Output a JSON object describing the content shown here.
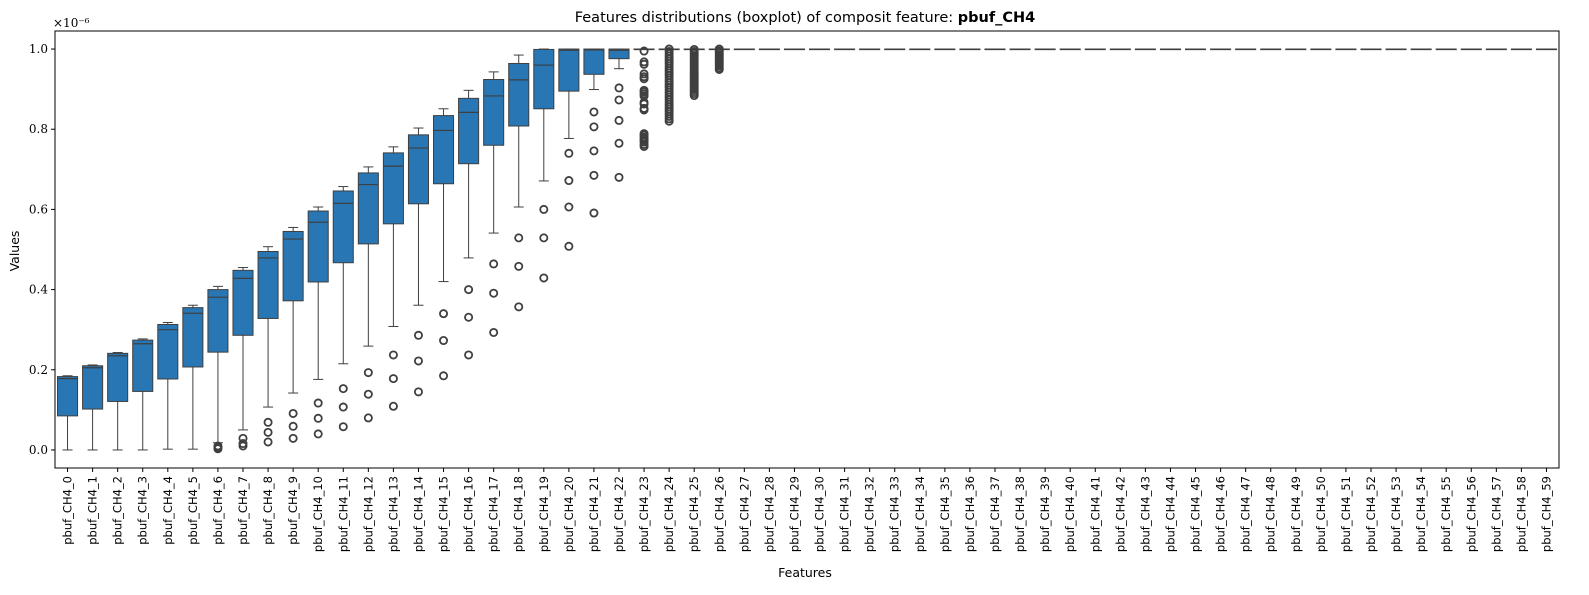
{
  "chart_data": {
    "type": "boxplot",
    "title_prefix": "Features distributions (boxplot) of composit feature: ",
    "title_bold": "pbuf_CH4",
    "xlabel": "Features",
    "ylabel": "Values",
    "y_multiplier_label": "×10⁻⁶",
    "ylim": [
      -0.045,
      1.045
    ],
    "yticks": [
      0.0,
      0.2,
      0.4,
      0.6,
      0.8,
      1.0
    ],
    "ytick_labels": [
      "0.0",
      "0.2",
      "0.4",
      "0.6",
      "0.8",
      "1.0"
    ],
    "box_color": "#2876b4",
    "line_color": "#3f3f3f",
    "categories": [
      "pbuf_CH4_0",
      "pbuf_CH4_1",
      "pbuf_CH4_2",
      "pbuf_CH4_3",
      "pbuf_CH4_4",
      "pbuf_CH4_5",
      "pbuf_CH4_6",
      "pbuf_CH4_7",
      "pbuf_CH4_8",
      "pbuf_CH4_9",
      "pbuf_CH4_10",
      "pbuf_CH4_11",
      "pbuf_CH4_12",
      "pbuf_CH4_13",
      "pbuf_CH4_14",
      "pbuf_CH4_15",
      "pbuf_CH4_16",
      "pbuf_CH4_17",
      "pbuf_CH4_18",
      "pbuf_CH4_19",
      "pbuf_CH4_20",
      "pbuf_CH4_21",
      "pbuf_CH4_22",
      "pbuf_CH4_23",
      "pbuf_CH4_24",
      "pbuf_CH4_25",
      "pbuf_CH4_26",
      "pbuf_CH4_27",
      "pbuf_CH4_28",
      "pbuf_CH4_29",
      "pbuf_CH4_30",
      "pbuf_CH4_31",
      "pbuf_CH4_32",
      "pbuf_CH4_33",
      "pbuf_CH4_34",
      "pbuf_CH4_35",
      "pbuf_CH4_36",
      "pbuf_CH4_37",
      "pbuf_CH4_38",
      "pbuf_CH4_39",
      "pbuf_CH4_40",
      "pbuf_CH4_41",
      "pbuf_CH4_42",
      "pbuf_CH4_43",
      "pbuf_CH4_44",
      "pbuf_CH4_45",
      "pbuf_CH4_46",
      "pbuf_CH4_47",
      "pbuf_CH4_48",
      "pbuf_CH4_49",
      "pbuf_CH4_50",
      "pbuf_CH4_51",
      "pbuf_CH4_52",
      "pbuf_CH4_53",
      "pbuf_CH4_54",
      "pbuf_CH4_55",
      "pbuf_CH4_56",
      "pbuf_CH4_57",
      "pbuf_CH4_58",
      "pbuf_CH4_59"
    ],
    "boxes": [
      {
        "whislo": 0.0,
        "q1": 0.085,
        "med": 0.178,
        "q3": 0.183,
        "whishi": 0.185,
        "fliers": []
      },
      {
        "whislo": 0.0,
        "q1": 0.102,
        "med": 0.205,
        "q3": 0.21,
        "whishi": 0.212,
        "fliers": []
      },
      {
        "whislo": 0.0,
        "q1": 0.121,
        "med": 0.235,
        "q3": 0.241,
        "whishi": 0.243,
        "fliers": []
      },
      {
        "whislo": 0.0,
        "q1": 0.146,
        "med": 0.265,
        "q3": 0.274,
        "whishi": 0.277,
        "fliers": []
      },
      {
        "whislo": 0.002,
        "q1": 0.177,
        "med": 0.3,
        "q3": 0.313,
        "whishi": 0.318,
        "fliers": []
      },
      {
        "whislo": 0.002,
        "q1": 0.207,
        "med": 0.341,
        "q3": 0.355,
        "whishi": 0.361,
        "fliers": []
      },
      {
        "whislo": 0.018,
        "q1": 0.244,
        "med": 0.381,
        "q3": 0.4,
        "whishi": 0.408,
        "fliers": [
          0.003,
          0.007,
          0.01
        ]
      },
      {
        "whislo": 0.05,
        "q1": 0.286,
        "med": 0.428,
        "q3": 0.448,
        "whishi": 0.455,
        "fliers": [
          0.01,
          0.016,
          0.029
        ]
      },
      {
        "whislo": 0.107,
        "q1": 0.328,
        "med": 0.479,
        "q3": 0.495,
        "whishi": 0.507,
        "fliers": [
          0.02,
          0.044,
          0.069
        ]
      },
      {
        "whislo": 0.142,
        "q1": 0.372,
        "med": 0.526,
        "q3": 0.545,
        "whishi": 0.555,
        "fliers": [
          0.029,
          0.059,
          0.091
        ]
      },
      {
        "whislo": 0.176,
        "q1": 0.419,
        "med": 0.568,
        "q3": 0.596,
        "whishi": 0.606,
        "fliers": [
          0.04,
          0.079,
          0.117
        ]
      },
      {
        "whislo": 0.215,
        "q1": 0.467,
        "med": 0.615,
        "q3": 0.646,
        "whishi": 0.657,
        "fliers": [
          0.058,
          0.107,
          0.153
        ]
      },
      {
        "whislo": 0.259,
        "q1": 0.514,
        "med": 0.662,
        "q3": 0.691,
        "whishi": 0.706,
        "fliers": [
          0.08,
          0.139,
          0.193
        ]
      },
      {
        "whislo": 0.308,
        "q1": 0.564,
        "med": 0.708,
        "q3": 0.741,
        "whishi": 0.756,
        "fliers": [
          0.109,
          0.178,
          0.237
        ]
      },
      {
        "whislo": 0.361,
        "q1": 0.614,
        "med": 0.753,
        "q3": 0.786,
        "whishi": 0.803,
        "fliers": [
          0.145,
          0.222,
          0.286
        ]
      },
      {
        "whislo": 0.42,
        "q1": 0.664,
        "med": 0.797,
        "q3": 0.834,
        "whishi": 0.851,
        "fliers": [
          0.185,
          0.273,
          0.34
        ]
      },
      {
        "whislo": 0.479,
        "q1": 0.714,
        "med": 0.842,
        "q3": 0.877,
        "whishi": 0.897,
        "fliers": [
          0.237,
          0.331,
          0.4
        ]
      },
      {
        "whislo": 0.541,
        "q1": 0.76,
        "med": 0.883,
        "q3": 0.924,
        "whishi": 0.943,
        "fliers": [
          0.293,
          0.391,
          0.464
        ]
      },
      {
        "whislo": 0.606,
        "q1": 0.808,
        "med": 0.923,
        "q3": 0.964,
        "whishi": 0.985,
        "fliers": [
          0.357,
          0.458,
          0.529
        ]
      },
      {
        "whislo": 0.671,
        "q1": 0.851,
        "med": 0.96,
        "q3": 0.999,
        "whishi": 1.0,
        "fliers": [
          0.429,
          0.529,
          0.6
        ]
      },
      {
        "whislo": 0.777,
        "q1": 0.895,
        "med": 0.997,
        "q3": 1.0,
        "whishi": 1.0,
        "fliers": [
          0.508,
          0.606,
          0.672,
          0.74
        ]
      },
      {
        "whislo": 0.899,
        "q1": 0.937,
        "med": 0.998,
        "q3": 1.0,
        "whishi": 1.0,
        "fliers": [
          0.591,
          0.685,
          0.746,
          0.806,
          0.843
        ]
      },
      {
        "whislo": 0.951,
        "q1": 0.976,
        "med": 0.997,
        "q3": 1.0,
        "whishi": 1.0,
        "fliers": [
          0.68,
          0.765,
          0.822,
          0.873,
          0.903
        ]
      },
      {
        "whislo": 1.0,
        "q1": 1.0,
        "med": 1.0,
        "q3": 1.0,
        "whishi": 1.0,
        "fliers": [
          0.757,
          0.762,
          0.768,
          0.772,
          0.776,
          0.78,
          0.785,
          0.789,
          0.848,
          0.852,
          0.863,
          0.867,
          0.883,
          0.888,
          0.893,
          0.897,
          0.926,
          0.931,
          0.938,
          0.962,
          0.968,
          0.995
        ]
      },
      {
        "whislo": 1.0,
        "q1": 1.0,
        "med": 1.0,
        "q3": 1.0,
        "whishi": 1.0,
        "fliers": [
          0.82,
          0.826,
          0.832,
          0.838,
          0.844,
          0.85,
          0.856,
          0.862,
          0.868,
          0.874,
          0.88,
          0.886,
          0.892,
          0.898,
          0.904,
          0.91,
          0.916,
          0.922,
          0.928,
          0.934,
          0.94,
          0.946,
          0.952,
          0.958,
          0.964,
          0.97,
          0.976,
          0.982,
          0.988,
          0.994,
          1.0
        ]
      },
      {
        "whislo": 1.0,
        "q1": 1.0,
        "med": 1.0,
        "q3": 1.0,
        "whishi": 1.0,
        "fliers": [
          0.884,
          0.889,
          0.894,
          0.899,
          0.904,
          0.909,
          0.914,
          0.919,
          0.924,
          0.929,
          0.934,
          0.939,
          0.944,
          0.949,
          0.954,
          0.959,
          0.964,
          0.969,
          0.974,
          0.979,
          0.984,
          0.989,
          0.994,
          0.999
        ]
      },
      {
        "whislo": 1.0,
        "q1": 1.0,
        "med": 1.0,
        "q3": 1.0,
        "whishi": 1.0,
        "fliers": [
          0.949,
          0.953,
          0.958,
          0.962,
          0.966,
          0.97,
          0.975,
          0.98,
          0.985,
          0.99,
          0.995,
          1.0
        ]
      },
      {
        "whislo": 1.0,
        "q1": 1.0,
        "med": 1.0,
        "q3": 1.0,
        "whishi": 1.0,
        "fliers": []
      },
      {
        "whislo": 1.0,
        "q1": 1.0,
        "med": 1.0,
        "q3": 1.0,
        "whishi": 1.0,
        "fliers": []
      },
      {
        "whislo": 1.0,
        "q1": 1.0,
        "med": 1.0,
        "q3": 1.0,
        "whishi": 1.0,
        "fliers": []
      },
      {
        "whislo": 1.0,
        "q1": 1.0,
        "med": 1.0,
        "q3": 1.0,
        "whishi": 1.0,
        "fliers": []
      },
      {
        "whislo": 1.0,
        "q1": 1.0,
        "med": 1.0,
        "q3": 1.0,
        "whishi": 1.0,
        "fliers": []
      },
      {
        "whislo": 1.0,
        "q1": 1.0,
        "med": 1.0,
        "q3": 1.0,
        "whishi": 1.0,
        "fliers": []
      },
      {
        "whislo": 1.0,
        "q1": 1.0,
        "med": 1.0,
        "q3": 1.0,
        "whishi": 1.0,
        "fliers": []
      },
      {
        "whislo": 1.0,
        "q1": 1.0,
        "med": 1.0,
        "q3": 1.0,
        "whishi": 1.0,
        "fliers": []
      },
      {
        "whislo": 1.0,
        "q1": 1.0,
        "med": 1.0,
        "q3": 1.0,
        "whishi": 1.0,
        "fliers": []
      },
      {
        "whislo": 1.0,
        "q1": 1.0,
        "med": 1.0,
        "q3": 1.0,
        "whishi": 1.0,
        "fliers": []
      },
      {
        "whislo": 1.0,
        "q1": 1.0,
        "med": 1.0,
        "q3": 1.0,
        "whishi": 1.0,
        "fliers": []
      },
      {
        "whislo": 1.0,
        "q1": 1.0,
        "med": 1.0,
        "q3": 1.0,
        "whishi": 1.0,
        "fliers": []
      },
      {
        "whislo": 1.0,
        "q1": 1.0,
        "med": 1.0,
        "q3": 1.0,
        "whishi": 1.0,
        "fliers": []
      },
      {
        "whislo": 1.0,
        "q1": 1.0,
        "med": 1.0,
        "q3": 1.0,
        "whishi": 1.0,
        "fliers": []
      },
      {
        "whislo": 1.0,
        "q1": 1.0,
        "med": 1.0,
        "q3": 1.0,
        "whishi": 1.0,
        "fliers": []
      },
      {
        "whislo": 1.0,
        "q1": 1.0,
        "med": 1.0,
        "q3": 1.0,
        "whishi": 1.0,
        "fliers": []
      },
      {
        "whislo": 1.0,
        "q1": 1.0,
        "med": 1.0,
        "q3": 1.0,
        "whishi": 1.0,
        "fliers": []
      },
      {
        "whislo": 1.0,
        "q1": 1.0,
        "med": 1.0,
        "q3": 1.0,
        "whishi": 1.0,
        "fliers": []
      },
      {
        "whislo": 1.0,
        "q1": 1.0,
        "med": 1.0,
        "q3": 1.0,
        "whishi": 1.0,
        "fliers": []
      },
      {
        "whislo": 1.0,
        "q1": 1.0,
        "med": 1.0,
        "q3": 1.0,
        "whishi": 1.0,
        "fliers": []
      },
      {
        "whislo": 1.0,
        "q1": 1.0,
        "med": 1.0,
        "q3": 1.0,
        "whishi": 1.0,
        "fliers": []
      },
      {
        "whislo": 1.0,
        "q1": 1.0,
        "med": 1.0,
        "q3": 1.0,
        "whishi": 1.0,
        "fliers": []
      },
      {
        "whislo": 1.0,
        "q1": 1.0,
        "med": 1.0,
        "q3": 1.0,
        "whishi": 1.0,
        "fliers": []
      },
      {
        "whislo": 1.0,
        "q1": 1.0,
        "med": 1.0,
        "q3": 1.0,
        "whishi": 1.0,
        "fliers": []
      },
      {
        "whislo": 1.0,
        "q1": 1.0,
        "med": 1.0,
        "q3": 1.0,
        "whishi": 1.0,
        "fliers": []
      },
      {
        "whislo": 1.0,
        "q1": 1.0,
        "med": 1.0,
        "q3": 1.0,
        "whishi": 1.0,
        "fliers": []
      },
      {
        "whislo": 1.0,
        "q1": 1.0,
        "med": 1.0,
        "q3": 1.0,
        "whishi": 1.0,
        "fliers": []
      },
      {
        "whislo": 1.0,
        "q1": 1.0,
        "med": 1.0,
        "q3": 1.0,
        "whishi": 1.0,
        "fliers": []
      },
      {
        "whislo": 1.0,
        "q1": 1.0,
        "med": 1.0,
        "q3": 1.0,
        "whishi": 1.0,
        "fliers": []
      },
      {
        "whislo": 1.0,
        "q1": 1.0,
        "med": 1.0,
        "q3": 1.0,
        "whishi": 1.0,
        "fliers": []
      },
      {
        "whislo": 1.0,
        "q1": 1.0,
        "med": 1.0,
        "q3": 1.0,
        "whishi": 1.0,
        "fliers": []
      },
      {
        "whislo": 1.0,
        "q1": 1.0,
        "med": 1.0,
        "q3": 1.0,
        "whishi": 1.0,
        "fliers": []
      },
      {
        "whislo": 1.0,
        "q1": 1.0,
        "med": 1.0,
        "q3": 1.0,
        "whishi": 1.0,
        "fliers": []
      }
    ]
  }
}
